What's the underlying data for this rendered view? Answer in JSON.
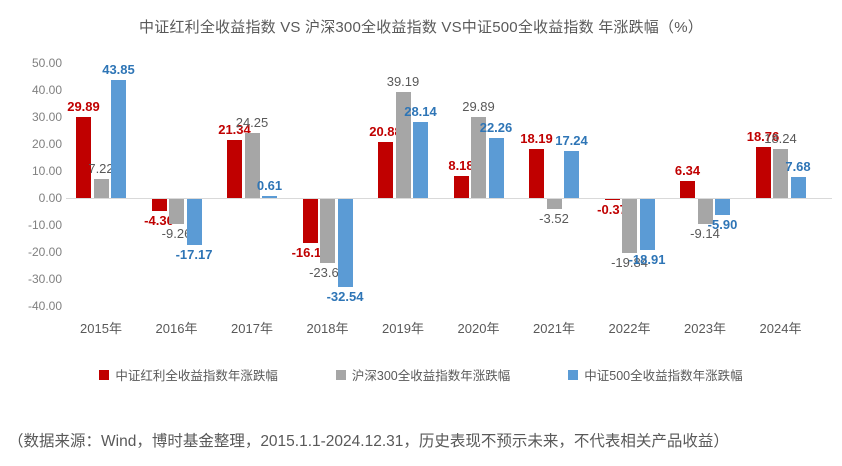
{
  "chart_data": {
    "type": "bar",
    "title": "中证红利全收益指数 VS 沪深300全收益指数 VS中证500全收益指数 年涨跌幅（%）",
    "categories": [
      "2015年",
      "2016年",
      "2017年",
      "2018年",
      "2019年",
      "2020年",
      "2021年",
      "2022年",
      "2023年",
      "2024年"
    ],
    "series": [
      {
        "name": "中证红利全收益指数年涨跌幅",
        "color": "#c00000",
        "label_color": "#c00000",
        "label_bold": true,
        "values": [
          29.89,
          -4.3,
          21.34,
          -16.15,
          20.88,
          8.18,
          18.19,
          -0.37,
          6.34,
          18.76
        ]
      },
      {
        "name": "沪深300全收益指数年涨跌幅",
        "color": "#a6a6a6",
        "label_color": "#595959",
        "label_bold": false,
        "values": [
          7.22,
          -9.26,
          24.25,
          -23.64,
          39.19,
          29.89,
          -3.52,
          -19.84,
          -9.14,
          18.24
        ]
      },
      {
        "name": "中证500全收益指数年涨跌幅",
        "color": "#5b9bd5",
        "label_color": "#2e75b6",
        "label_bold": true,
        "values": [
          43.85,
          -17.17,
          0.61,
          -32.54,
          28.14,
          22.26,
          17.24,
          -18.91,
          -5.9,
          7.68
        ]
      }
    ],
    "y_ticks": [
      50,
      40,
      30,
      20,
      10,
      0,
      -10,
      -20,
      -30,
      -40
    ],
    "ylim": [
      -40,
      50
    ],
    "value_format": "0.00",
    "grid": false,
    "legend_position": "bottom",
    "zero_line_color": "#d9d9d9"
  },
  "footer": {
    "note": "（数据来源：Wind，博时基金整理，2015.1.1-2024.12.31，历史表现不预示未来，不代表相关产品收益）"
  }
}
